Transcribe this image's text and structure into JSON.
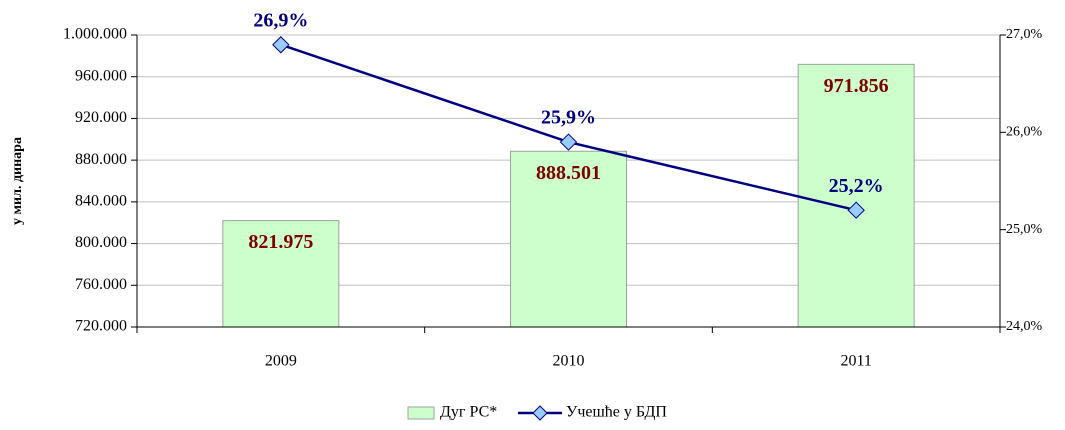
{
  "chart_data": {
    "type": "bar",
    "y_label": "у мил. динара",
    "categories": [
      "2009",
      "2010",
      "2011"
    ],
    "series": [
      {
        "name": "Дуг РС*",
        "type": "bar",
        "color": "#ccffcc",
        "values": [
          821975,
          888501,
          971856
        ],
        "value_labels": [
          "821.975",
          "888.501",
          "971.856"
        ]
      },
      {
        "name": "Учешће у БДП",
        "type": "line",
        "axis": "y2",
        "color": "#000080",
        "marker_color": "#99ccff",
        "values": [
          26.9,
          25.9,
          25.2
        ],
        "value_labels": [
          "26,9%",
          "25,9%",
          "25,2%"
        ]
      }
    ],
    "ylim": [
      720000,
      1000000
    ],
    "yticks": [
      {
        "value": 720000,
        "label": "720.000"
      },
      {
        "value": 760000,
        "label": "760.000"
      },
      {
        "value": 800000,
        "label": "800.000"
      },
      {
        "value": 840000,
        "label": "840.000"
      },
      {
        "value": 880000,
        "label": "880.000"
      },
      {
        "value": 920000,
        "label": "920.000"
      },
      {
        "value": 960000,
        "label": "960.000"
      },
      {
        "value": 1000000,
        "label": "1.000.000"
      }
    ],
    "y2lim": [
      24,
      27
    ],
    "y2ticks": [
      {
        "value": 24,
        "label": "24,0%"
      },
      {
        "value": 25,
        "label": "25,0%"
      },
      {
        "value": 26,
        "label": "26,0%"
      },
      {
        "value": 27,
        "label": "27,0%"
      }
    ],
    "grid": true,
    "legend": "bottom"
  }
}
